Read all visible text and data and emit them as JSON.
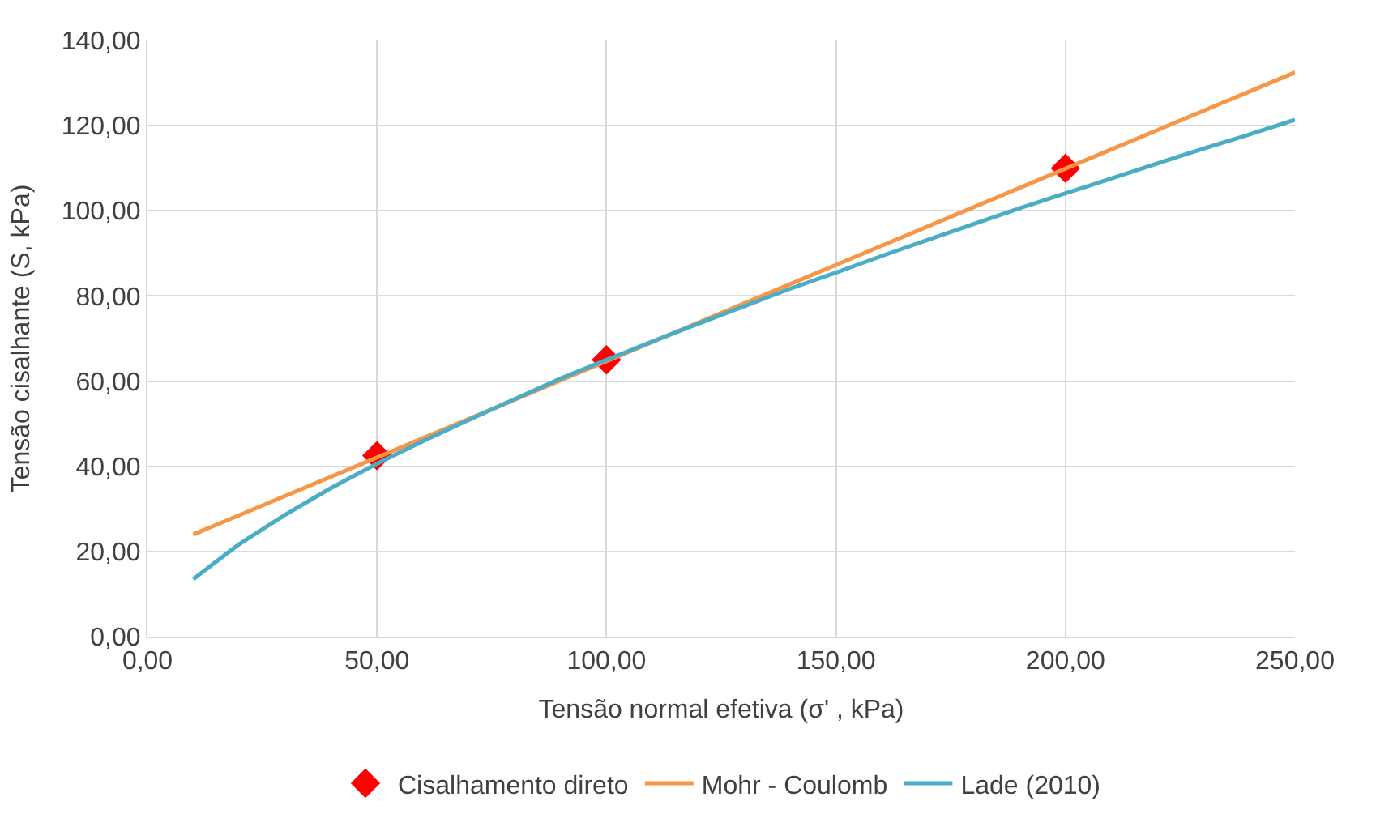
{
  "chart_data": {
    "type": "line",
    "xlabel": "Tensão normal efetiva (σ' , kPa)",
    "ylabel": "Tensão cisalhante (S, kPa)",
    "xlim": [
      0,
      250
    ],
    "xticks": [
      {
        "value": 0,
        "label": "0,00"
      },
      {
        "value": 50,
        "label": "50,00"
      },
      {
        "value": 100,
        "label": "100,00"
      },
      {
        "value": 150,
        "label": "150,00"
      },
      {
        "value": 200,
        "label": "200,00"
      },
      {
        "value": 250,
        "label": "250,00"
      }
    ],
    "ylim": [
      0,
      140
    ],
    "yticks": [
      {
        "value": 0,
        "label": "0,00"
      },
      {
        "value": 20,
        "label": "20,00"
      },
      {
        "value": 40,
        "label": "40,00"
      },
      {
        "value": 60,
        "label": "60,00"
      },
      {
        "value": 80,
        "label": "80,00"
      },
      {
        "value": 100,
        "label": "100,00"
      },
      {
        "value": 120,
        "label": "120,00"
      },
      {
        "value": 140,
        "label": "140,00"
      }
    ],
    "grid": true,
    "legend": "bottom",
    "series": [
      {
        "name": "Cisalhamento direto",
        "type": "scatter",
        "marker": "diamond",
        "color": "#ff0000",
        "x": [
          50,
          100,
          200
        ],
        "values": [
          42.5,
          65,
          110
        ]
      },
      {
        "name": "Mohr - Coulomb",
        "color": "#f79646",
        "x": [
          10,
          250
        ],
        "values": [
          24,
          132.5
        ]
      },
      {
        "name": "Lade (2010)",
        "color": "#4bacc6",
        "x": [
          10,
          20,
          30,
          40,
          50,
          60,
          70,
          80,
          90,
          100,
          110,
          120,
          130,
          140,
          150,
          160,
          170,
          180,
          190,
          200,
          210,
          220,
          230,
          240,
          250
        ],
        "values": [
          13.5,
          21.7,
          28.6,
          34.9,
          40.6,
          45.9,
          50.9,
          55.8,
          60.6,
          65.0,
          69.3,
          73.5,
          77.6,
          81.7,
          85.5,
          89.4,
          93.2,
          96.9,
          100.6,
          104.1,
          107.6,
          111.1,
          114.6,
          117.9,
          121.4
        ]
      }
    ]
  }
}
